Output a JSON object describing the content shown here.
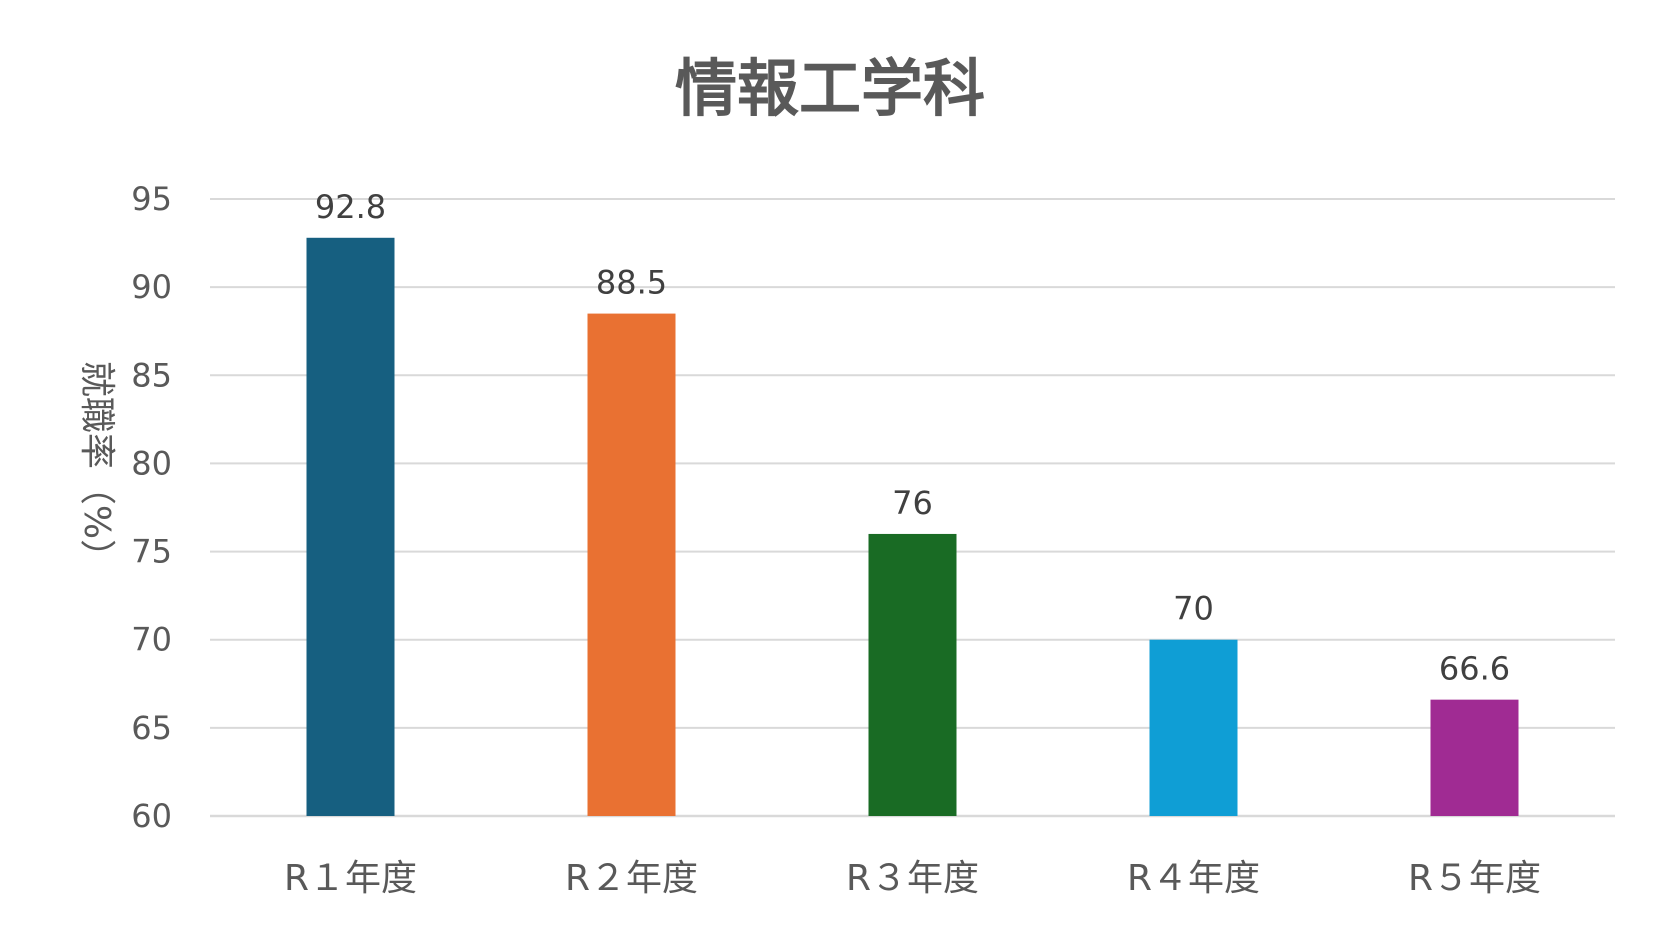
{
  "chart_data": {
    "type": "bar",
    "title": "情報工学科",
    "xlabel": "",
    "ylabel": "就職率（%）",
    "categories": [
      "R１年度",
      "R２年度",
      "R３年度",
      "R４年度",
      "R５年度"
    ],
    "values": [
      92.8,
      88.5,
      76,
      70,
      66.6
    ],
    "data_labels": [
      "92.8",
      "88.5",
      "76",
      "70",
      "66.6"
    ],
    "colors": [
      "#165f80",
      "#e97132",
      "#196b24",
      "#0f9ed5",
      "#a02b93"
    ],
    "ylim": [
      60,
      95
    ],
    "yticks": [
      60,
      65,
      70,
      75,
      80,
      85,
      90,
      95
    ],
    "grid": true,
    "legend": "none"
  }
}
